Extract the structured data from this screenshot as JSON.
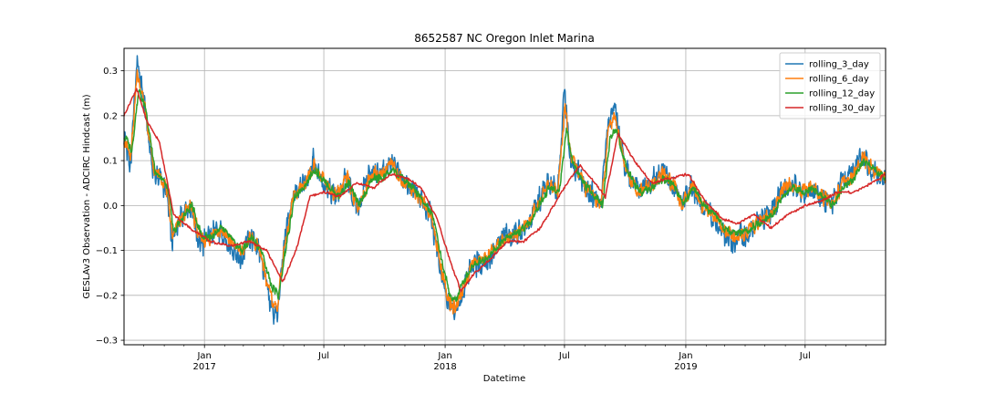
{
  "chart_data": {
    "type": "line",
    "title": "8652587 NC Oregon Inlet Marina",
    "xlabel": "Datetime",
    "ylabel": "GESLAv3 Observation - ADCIRC Hindcast (m)",
    "xlim": [
      "2016-09-01",
      "2019-10-31"
    ],
    "ylim": [
      -0.31,
      0.35
    ],
    "yticks": [
      -0.3,
      -0.2,
      -0.1,
      0.0,
      0.1,
      0.2,
      0.3
    ],
    "ytick_labels": [
      "−0.3",
      "−0.2",
      "−0.1",
      "0.0",
      "0.1",
      "0.2",
      "0.3"
    ],
    "xticks_major": [
      {
        "date": "2017-01-01",
        "label": "Jan",
        "sublabel": "2017"
      },
      {
        "date": "2017-07-01",
        "label": "Jul",
        "sublabel": ""
      },
      {
        "date": "2018-01-01",
        "label": "Jan",
        "sublabel": "2018"
      },
      {
        "date": "2018-07-01",
        "label": "Jul",
        "sublabel": ""
      },
      {
        "date": "2019-01-01",
        "label": "Jan",
        "sublabel": "2019"
      },
      {
        "date": "2019-07-01",
        "label": "Jul",
        "sublabel": ""
      }
    ],
    "grid": true,
    "legend_position": "upper right",
    "series": [
      {
        "name": "rolling_3_day",
        "color": "#1f77b4",
        "noise": 0.035,
        "lag_days": 0,
        "x": [
          "2016-09-01",
          "2016-09-10",
          "2016-09-20",
          "2016-09-30",
          "2016-10-15",
          "2016-10-30",
          "2016-11-05",
          "2016-11-12",
          "2016-11-25",
          "2016-12-10",
          "2016-12-25",
          "2017-01-10",
          "2017-01-25",
          "2017-02-10",
          "2017-02-25",
          "2017-03-10",
          "2017-03-25",
          "2017-04-10",
          "2017-04-20",
          "2017-05-01",
          "2017-05-15",
          "2017-06-01",
          "2017-06-15",
          "2017-07-01",
          "2017-07-20",
          "2017-08-05",
          "2017-08-20",
          "2017-09-10",
          "2017-09-25",
          "2017-10-10",
          "2017-10-25",
          "2017-11-10",
          "2017-11-25",
          "2017-12-10",
          "2017-12-25",
          "2018-01-05",
          "2018-01-15",
          "2018-01-25",
          "2018-02-10",
          "2018-02-25",
          "2018-03-15",
          "2018-04-01",
          "2018-04-20",
          "2018-05-05",
          "2018-05-20",
          "2018-06-05",
          "2018-06-20",
          "2018-07-01",
          "2018-07-10",
          "2018-07-20",
          "2018-08-01",
          "2018-08-15",
          "2018-08-25",
          "2018-09-05",
          "2018-09-15",
          "2018-10-01",
          "2018-10-20",
          "2018-11-05",
          "2018-11-25",
          "2018-12-10",
          "2018-12-25",
          "2019-01-10",
          "2019-01-25",
          "2019-02-10",
          "2019-02-25",
          "2019-03-10",
          "2019-03-25",
          "2019-04-10",
          "2019-04-25",
          "2019-05-10",
          "2019-05-25",
          "2019-06-10",
          "2019-06-25",
          "2019-07-10",
          "2019-07-25",
          "2019-08-10",
          "2019-08-25",
          "2019-09-10",
          "2019-09-25",
          "2019-10-10",
          "2019-10-31"
        ],
        "y": [
          0.16,
          0.08,
          0.31,
          0.25,
          0.07,
          0.05,
          0.03,
          -0.08,
          -0.03,
          0.0,
          -0.09,
          -0.07,
          -0.05,
          -0.09,
          -0.12,
          -0.07,
          -0.1,
          -0.22,
          -0.25,
          -0.1,
          0.02,
          0.05,
          0.1,
          0.05,
          0.02,
          0.06,
          -0.01,
          0.08,
          0.07,
          0.1,
          0.06,
          0.04,
          0.01,
          -0.02,
          -0.15,
          -0.22,
          -0.24,
          -0.2,
          -0.13,
          -0.13,
          -0.11,
          -0.07,
          -0.06,
          -0.05,
          0.0,
          0.05,
          0.03,
          0.25,
          0.1,
          0.08,
          0.04,
          0.02,
          0.0,
          0.18,
          0.22,
          0.08,
          0.03,
          0.04,
          0.08,
          0.05,
          0.0,
          0.05,
          0.0,
          -0.02,
          -0.06,
          -0.08,
          -0.07,
          -0.06,
          -0.03,
          -0.02,
          0.03,
          0.05,
          0.03,
          0.04,
          0.02,
          0.0,
          0.05,
          0.07,
          0.12,
          0.08,
          0.06
        ]
      },
      {
        "name": "rolling_6_day",
        "color": "#ff7f0e",
        "noise": 0.022,
        "lag_days": 1,
        "x": [
          "2016-09-01",
          "2016-09-10",
          "2016-09-20",
          "2016-09-30",
          "2016-10-15",
          "2016-10-30",
          "2016-11-05",
          "2016-11-12",
          "2016-11-25",
          "2016-12-10",
          "2016-12-25",
          "2017-01-10",
          "2017-01-25",
          "2017-02-10",
          "2017-02-25",
          "2017-03-10",
          "2017-03-25",
          "2017-04-10",
          "2017-04-20",
          "2017-05-01",
          "2017-05-15",
          "2017-06-01",
          "2017-06-15",
          "2017-07-01",
          "2017-07-20",
          "2017-08-05",
          "2017-08-20",
          "2017-09-10",
          "2017-09-25",
          "2017-10-10",
          "2017-10-25",
          "2017-11-10",
          "2017-11-25",
          "2017-12-10",
          "2017-12-25",
          "2018-01-05",
          "2018-01-15",
          "2018-01-25",
          "2018-02-10",
          "2018-02-25",
          "2018-03-15",
          "2018-04-01",
          "2018-04-20",
          "2018-05-05",
          "2018-05-20",
          "2018-06-05",
          "2018-06-20",
          "2018-07-01",
          "2018-07-10",
          "2018-07-20",
          "2018-08-01",
          "2018-08-15",
          "2018-08-25",
          "2018-09-05",
          "2018-09-15",
          "2018-10-01",
          "2018-10-20",
          "2018-11-05",
          "2018-11-25",
          "2018-12-10",
          "2018-12-25",
          "2019-01-10",
          "2019-01-25",
          "2019-02-10",
          "2019-02-25",
          "2019-03-10",
          "2019-03-25",
          "2019-04-10",
          "2019-04-25",
          "2019-05-10",
          "2019-05-25",
          "2019-06-10",
          "2019-06-25",
          "2019-07-10",
          "2019-07-25",
          "2019-08-10",
          "2019-08-25",
          "2019-09-10",
          "2019-09-25",
          "2019-10-10",
          "2019-10-31"
        ],
        "y": [
          0.15,
          0.1,
          0.29,
          0.24,
          0.08,
          0.05,
          0.03,
          -0.07,
          -0.03,
          0.0,
          -0.08,
          -0.07,
          -0.05,
          -0.08,
          -0.11,
          -0.07,
          -0.1,
          -0.2,
          -0.23,
          -0.1,
          0.02,
          0.05,
          0.09,
          0.05,
          0.02,
          0.06,
          -0.01,
          0.07,
          0.07,
          0.09,
          0.06,
          0.04,
          0.01,
          -0.02,
          -0.14,
          -0.21,
          -0.23,
          -0.19,
          -0.13,
          -0.12,
          -0.1,
          -0.07,
          -0.06,
          -0.04,
          0.0,
          0.05,
          0.03,
          0.23,
          0.1,
          0.08,
          0.04,
          0.02,
          0.0,
          0.17,
          0.2,
          0.08,
          0.03,
          0.04,
          0.07,
          0.05,
          0.0,
          0.05,
          0.0,
          -0.02,
          -0.05,
          -0.07,
          -0.07,
          -0.05,
          -0.03,
          -0.02,
          0.03,
          0.05,
          0.03,
          0.04,
          0.02,
          0.0,
          0.05,
          0.06,
          0.11,
          0.08,
          0.06
        ]
      },
      {
        "name": "rolling_12_day",
        "color": "#2ca02c",
        "noise": 0.012,
        "lag_days": 3,
        "x": [
          "2016-09-01",
          "2016-09-10",
          "2016-09-20",
          "2016-09-30",
          "2016-10-15",
          "2016-10-30",
          "2016-11-05",
          "2016-11-12",
          "2016-11-25",
          "2016-12-10",
          "2016-12-25",
          "2017-01-10",
          "2017-01-25",
          "2017-02-10",
          "2017-02-25",
          "2017-03-10",
          "2017-03-25",
          "2017-04-10",
          "2017-04-20",
          "2017-05-01",
          "2017-05-15",
          "2017-06-01",
          "2017-06-15",
          "2017-07-01",
          "2017-07-20",
          "2017-08-05",
          "2017-08-20",
          "2017-09-10",
          "2017-09-25",
          "2017-10-10",
          "2017-10-25",
          "2017-11-10",
          "2017-11-25",
          "2017-12-10",
          "2017-12-25",
          "2018-01-05",
          "2018-01-15",
          "2018-01-25",
          "2018-02-10",
          "2018-02-25",
          "2018-03-15",
          "2018-04-01",
          "2018-04-20",
          "2018-05-05",
          "2018-05-20",
          "2018-06-05",
          "2018-06-20",
          "2018-07-01",
          "2018-07-10",
          "2018-07-20",
          "2018-08-01",
          "2018-08-15",
          "2018-08-25",
          "2018-09-05",
          "2018-09-15",
          "2018-10-01",
          "2018-10-20",
          "2018-11-05",
          "2018-11-25",
          "2018-12-10",
          "2018-12-25",
          "2019-01-10",
          "2019-01-25",
          "2019-02-10",
          "2019-02-25",
          "2019-03-10",
          "2019-03-25",
          "2019-04-10",
          "2019-04-25",
          "2019-05-10",
          "2019-05-25",
          "2019-06-10",
          "2019-06-25",
          "2019-07-10",
          "2019-07-25",
          "2019-08-10",
          "2019-08-25",
          "2019-09-10",
          "2019-09-25",
          "2019-10-10",
          "2019-10-31"
        ],
        "y": [
          0.15,
          0.12,
          0.26,
          0.22,
          0.08,
          0.05,
          0.03,
          -0.06,
          -0.03,
          0.0,
          -0.07,
          -0.07,
          -0.05,
          -0.08,
          -0.1,
          -0.07,
          -0.1,
          -0.18,
          -0.2,
          -0.1,
          0.02,
          0.05,
          0.08,
          0.05,
          0.02,
          0.05,
          0.0,
          0.06,
          0.06,
          0.08,
          0.06,
          0.04,
          0.01,
          -0.02,
          -0.13,
          -0.2,
          -0.21,
          -0.17,
          -0.13,
          -0.12,
          -0.1,
          -0.07,
          -0.06,
          -0.04,
          0.0,
          0.04,
          0.03,
          0.17,
          0.1,
          0.07,
          0.04,
          0.02,
          0.0,
          0.15,
          0.17,
          0.08,
          0.03,
          0.04,
          0.06,
          0.05,
          0.0,
          0.04,
          0.0,
          -0.02,
          -0.05,
          -0.06,
          -0.06,
          -0.05,
          -0.03,
          -0.02,
          0.02,
          0.04,
          0.03,
          0.04,
          0.02,
          0.0,
          0.04,
          0.06,
          0.1,
          0.08,
          0.06
        ]
      },
      {
        "name": "rolling_30_day",
        "color": "#d62728",
        "noise": 0.004,
        "lag_days": 0,
        "x": [
          "2016-09-01",
          "2016-09-20",
          "2016-10-05",
          "2016-10-25",
          "2016-11-15",
          "2016-12-10",
          "2017-01-10",
          "2017-02-10",
          "2017-03-10",
          "2017-04-05",
          "2017-04-30",
          "2017-05-20",
          "2017-06-10",
          "2017-07-01",
          "2017-07-25",
          "2017-08-20",
          "2017-09-15",
          "2017-10-10",
          "2017-11-05",
          "2017-11-25",
          "2017-12-20",
          "2018-01-10",
          "2018-01-25",
          "2018-02-15",
          "2018-03-10",
          "2018-04-05",
          "2018-04-30",
          "2018-05-25",
          "2018-06-15",
          "2018-07-05",
          "2018-07-25",
          "2018-08-10",
          "2018-09-01",
          "2018-09-20",
          "2018-10-15",
          "2018-11-10",
          "2018-12-05",
          "2019-01-05",
          "2019-01-30",
          "2019-02-25",
          "2019-03-20",
          "2019-04-15",
          "2019-05-10",
          "2019-06-05",
          "2019-07-01",
          "2019-07-25",
          "2019-08-20",
          "2019-09-15",
          "2019-10-10",
          "2019-10-31"
        ],
        "y": [
          0.2,
          0.26,
          0.19,
          0.14,
          -0.02,
          -0.05,
          -0.08,
          -0.09,
          -0.08,
          -0.1,
          -0.17,
          -0.1,
          0.02,
          0.03,
          0.02,
          0.05,
          0.04,
          0.07,
          0.06,
          0.04,
          -0.03,
          -0.13,
          -0.19,
          -0.15,
          -0.12,
          -0.08,
          -0.08,
          -0.05,
          0.0,
          0.05,
          0.09,
          0.06,
          0.02,
          0.16,
          0.1,
          0.05,
          0.06,
          0.07,
          0.01,
          -0.03,
          -0.04,
          -0.02,
          -0.05,
          -0.02,
          0.0,
          0.01,
          0.03,
          0.03,
          0.05,
          0.07
        ]
      }
    ]
  }
}
